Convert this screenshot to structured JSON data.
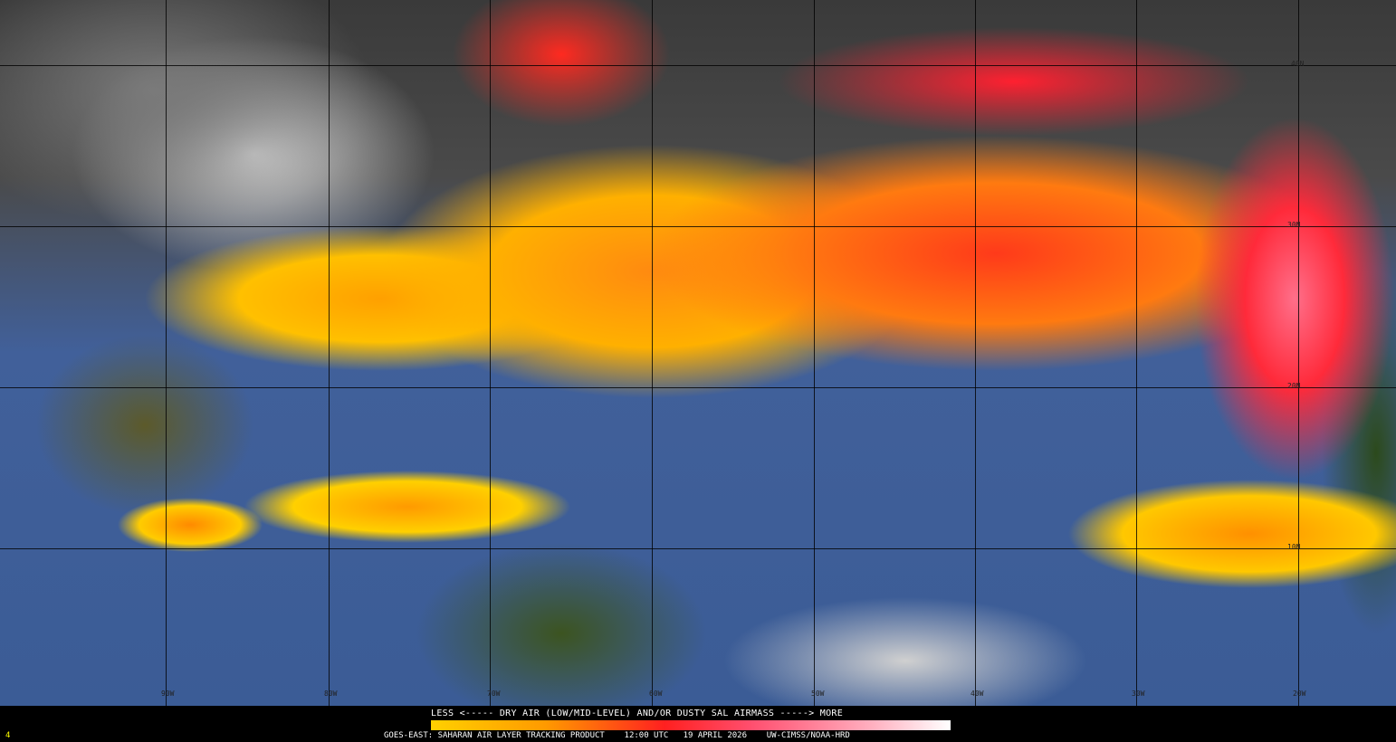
{
  "map": {
    "longitude_labels": [
      "90W",
      "80W",
      "70W",
      "60W",
      "50W",
      "40W",
      "30W",
      "20W"
    ],
    "latitude_labels": [
      "40N",
      "30N",
      "20N",
      "10N"
    ]
  },
  "legend": {
    "title": "LESS <----- DRY AIR (LOW/MID-LEVEL) AND/OR DUSTY SAL AIRMASS -----> MORE",
    "colorbar_colors": [
      "#ffd000",
      "#ff9a00",
      "#ff2020",
      "#ff5070",
      "#ffb0c0",
      "#ffffff"
    ],
    "frame_number": "4",
    "product": "GOES-EAST: SAHARAN AIR LAYER TRACKING PRODUCT",
    "time": "12:00 UTC",
    "date": "19 APRIL 2026",
    "credit": "UW-CIMSS/NOAA-HRD"
  }
}
